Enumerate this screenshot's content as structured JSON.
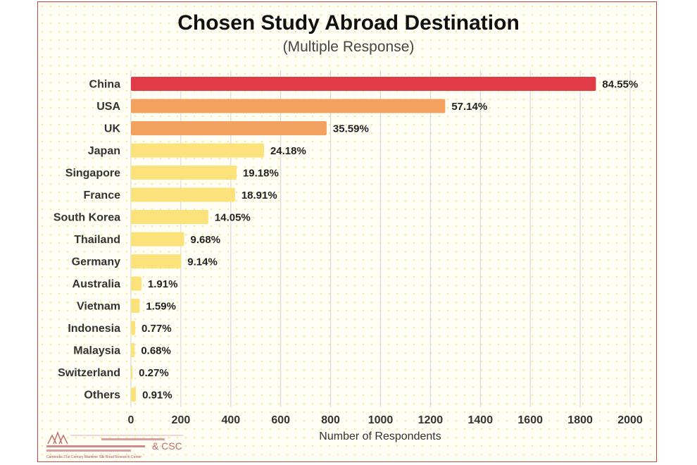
{
  "title": "Chosen Study Abroad Destination",
  "subtitle": "(Multiple Response)",
  "xlabel": "Number of Respondents",
  "logo": {
    "org_line": "Cambodia 21st Century Maritime Silk Road Research Center",
    "partner": "& CSC"
  },
  "colors": {
    "top": "#e23b48",
    "second_tier": "#f2a25e",
    "third_tier": "#fbe27a",
    "frame_border": "#c0473b",
    "gridline": "#d9d9d9"
  },
  "chart_data": {
    "type": "bar",
    "orientation": "horizontal",
    "title": "Chosen Study Abroad Destination",
    "subtitle": "(Multiple Response)",
    "xlabel": "Number of Respondents",
    "ylabel": "",
    "xlim": [
      0,
      2000
    ],
    "xticks": [
      0,
      200,
      400,
      600,
      800,
      1000,
      1200,
      1400,
      1600,
      1800,
      2000
    ],
    "grid": "vertical",
    "categories": [
      "China",
      "USA",
      "UK",
      "Japan",
      "Singapore",
      "France",
      "South Korea",
      "Thailand",
      "Germany",
      "Australia",
      "Vietnam",
      "Indonesia",
      "Malaysia",
      "Switzerland",
      "Others"
    ],
    "values": [
      1863,
      1259,
      784,
      533,
      423,
      417,
      310,
      213,
      201,
      42,
      35,
      17,
      15,
      6,
      20
    ],
    "labels": [
      "84.55%",
      "57.14%",
      "35.59%",
      "24.18%",
      "19.18%",
      "18.91%",
      "14.05%",
      "9.68%",
      "9.14%",
      "1.91%",
      "1.59%",
      "0.77%",
      "0.68%",
      "0.27%",
      "0.91%"
    ],
    "color_groups": [
      "top",
      "second_tier",
      "second_tier",
      "third_tier",
      "third_tier",
      "third_tier",
      "third_tier",
      "third_tier",
      "third_tier",
      "third_tier",
      "third_tier",
      "third_tier",
      "third_tier",
      "third_tier",
      "third_tier"
    ]
  }
}
